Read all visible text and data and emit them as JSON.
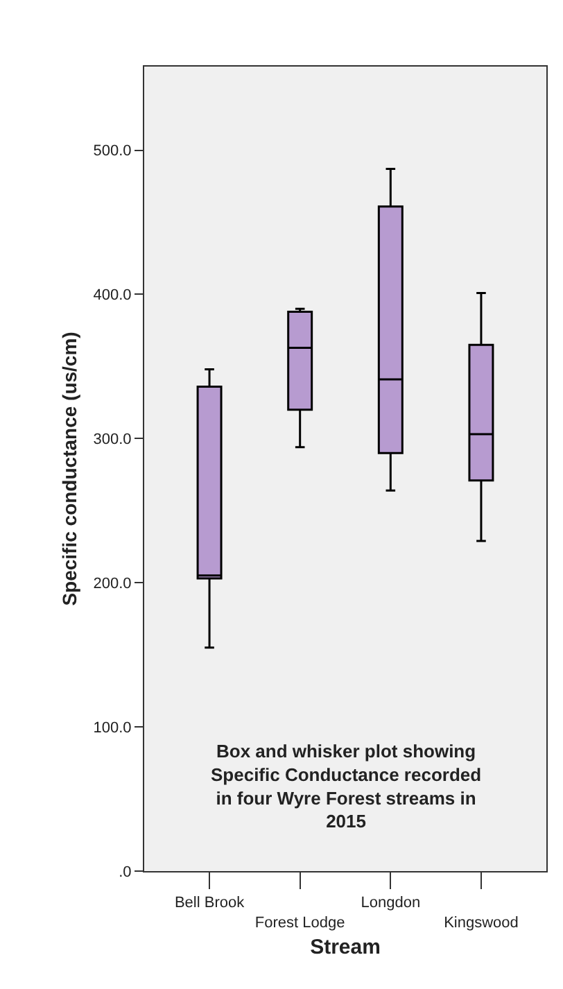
{
  "chart_data": {
    "type": "box",
    "xlabel": "Stream",
    "ylabel": "Specific conductance (us/cm)",
    "categories": [
      "Bell Brook",
      "Forest Lodge",
      "Longdon",
      "Kingswood"
    ],
    "color": "#b79bd0",
    "boxes": [
      {
        "low": 155,
        "q1": 203,
        "median": 205,
        "q3": 336,
        "high": 348
      },
      {
        "low": 294,
        "q1": 320,
        "median": 363,
        "q3": 388,
        "high": 390
      },
      {
        "low": 264,
        "q1": 290,
        "median": 341,
        "q3": 461,
        "high": 487
      },
      {
        "low": 229,
        "q1": 271,
        "median": 303,
        "q3": 365,
        "high": 401
      }
    ],
    "ylim": [
      0,
      558
    ],
    "yticks": [
      {
        "value": 0,
        "label": ".0"
      },
      {
        "value": 100,
        "label": "100.0"
      },
      {
        "value": 200,
        "label": "200.0"
      },
      {
        "value": 300,
        "label": "300.0"
      },
      {
        "value": 400,
        "label": "400.0"
      },
      {
        "value": 500,
        "label": "500.0"
      }
    ],
    "grid": false,
    "annotations": [
      "Box and whisker plot showing Specific Conductance recorded in four Wyre Forest streams in 2015"
    ]
  }
}
